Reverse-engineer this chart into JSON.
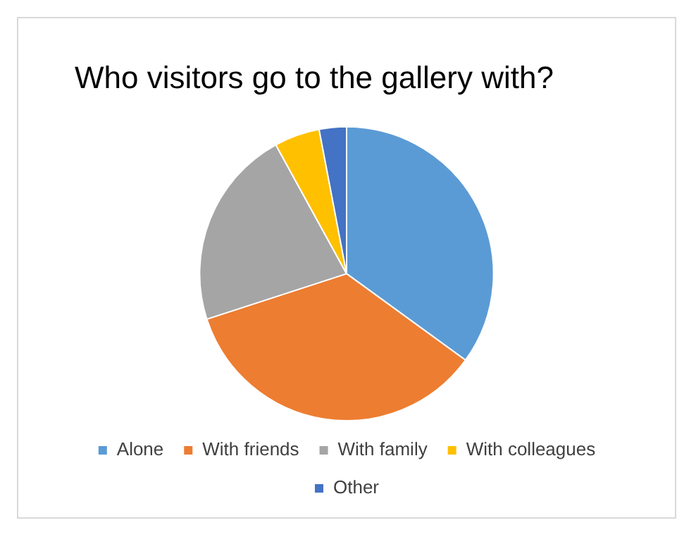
{
  "chart_data": {
    "type": "pie",
    "title": "Who visitors go to the gallery with?",
    "categories": [
      "Alone",
      "With friends",
      "With family",
      "With colleagues",
      "Other"
    ],
    "values": [
      35,
      35,
      22,
      5,
      3
    ],
    "colors": [
      "#5b9bd5",
      "#ed7d31",
      "#a5a5a5",
      "#ffc000",
      "#4472c4"
    ],
    "legend": "bottom"
  }
}
